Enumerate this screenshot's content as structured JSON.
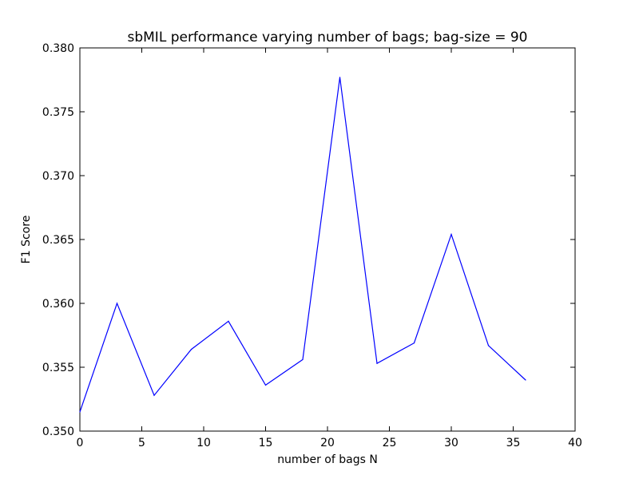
{
  "chart_data": {
    "type": "line",
    "title": "sbMIL performance varying number of bags; bag-size = 90",
    "xlabel": "number of bags N",
    "ylabel": "F1 Score",
    "xlim": [
      0,
      40
    ],
    "ylim": [
      0.35,
      0.38
    ],
    "xticks": [
      "0",
      "5",
      "10",
      "15",
      "20",
      "25",
      "30",
      "35",
      "40"
    ],
    "yticks": [
      "0.350",
      "0.355",
      "0.360",
      "0.365",
      "0.370",
      "0.375",
      "0.380"
    ],
    "grid": false,
    "line_color": "#0000ff",
    "series": [
      {
        "x": [
          0,
          3,
          6,
          9,
          12,
          15,
          18,
          21,
          24,
          27,
          30,
          33,
          36
        ],
        "y": [
          0.3515,
          0.36,
          0.3528,
          0.3564,
          0.3586,
          0.3536,
          0.3556,
          0.3777,
          0.3553,
          0.3569,
          0.3654,
          0.3567,
          0.354
        ]
      }
    ]
  }
}
